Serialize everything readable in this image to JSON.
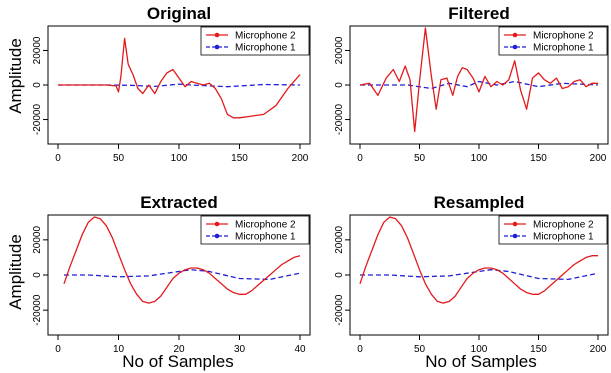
{
  "figure": {
    "ylabel": "Amplitude",
    "xlabel": "No of Samples",
    "legend": [
      "Microphone 2",
      "Microphone 1"
    ],
    "colors": {
      "mic2": "#e31a1c",
      "mic1": "#1f1fd6"
    }
  },
  "chart_data": [
    {
      "type": "line",
      "title": "Original",
      "ylabel": "Amplitude",
      "xlabel": "",
      "xlim": [
        0,
        200
      ],
      "ylim": [
        -33000,
        33000
      ],
      "xticks": [
        "0",
        "50",
        "100",
        "150",
        "200"
      ],
      "yticks": [
        "-20000",
        "0",
        "20000"
      ],
      "legend_position": "top-right",
      "series": [
        {
          "name": "Microphone 2",
          "x": [
            0,
            20,
            40,
            48,
            50,
            52,
            55,
            58,
            62,
            66,
            70,
            75,
            80,
            85,
            90,
            95,
            100,
            105,
            110,
            115,
            120,
            125,
            130,
            135,
            140,
            145,
            150,
            160,
            170,
            180,
            190,
            200
          ],
          "y": [
            0,
            0,
            0,
            -500,
            -4000,
            5000,
            27000,
            12000,
            6000,
            -2000,
            -5000,
            0,
            -5000,
            2000,
            7000,
            9000,
            4000,
            -1000,
            2000,
            1000,
            0,
            1000,
            -2000,
            -8000,
            -17000,
            -19000,
            -19000,
            -18000,
            -17000,
            -12000,
            -2000,
            6000
          ]
        },
        {
          "name": "Microphone 1",
          "x": [
            0,
            40,
            60,
            80,
            95,
            100,
            110,
            140,
            170,
            200
          ],
          "y": [
            0,
            0,
            -200,
            -800,
            200,
            500,
            0,
            -1000,
            300,
            0
          ]
        }
      ]
    },
    {
      "type": "line",
      "title": "Filtered",
      "ylabel": "",
      "xlabel": "",
      "xlim": [
        0,
        200
      ],
      "ylim": [
        -33000,
        33000
      ],
      "xticks": [
        "0",
        "50",
        "100",
        "150",
        "200"
      ],
      "yticks": [
        "-20000",
        "0",
        "20000"
      ],
      "legend_position": "top-right",
      "series": [
        {
          "name": "Microphone 2",
          "x": [
            0,
            8,
            15,
            22,
            28,
            33,
            38,
            42,
            46,
            50,
            55,
            60,
            64,
            68,
            73,
            78,
            82,
            86,
            90,
            95,
            100,
            105,
            110,
            115,
            120,
            125,
            130,
            135,
            140,
            145,
            150,
            155,
            160,
            165,
            170,
            175,
            180,
            185,
            190,
            195,
            200
          ],
          "y": [
            0,
            1000,
            -6000,
            4000,
            9000,
            2000,
            11000,
            3000,
            -27000,
            2000,
            33000,
            5000,
            -14000,
            3000,
            4000,
            -6000,
            5000,
            10000,
            9000,
            4000,
            -4000,
            5000,
            -1000,
            2000,
            0,
            3000,
            14000,
            -3000,
            -14000,
            4000,
            7000,
            3000,
            1000,
            4000,
            -2000,
            -1000,
            2000,
            3000,
            -1000,
            1000,
            1000
          ]
        },
        {
          "name": "Microphone 1",
          "x": [
            0,
            40,
            60,
            75,
            90,
            100,
            115,
            130,
            150,
            170,
            200
          ],
          "y": [
            0,
            0,
            -2000,
            1000,
            -1000,
            2000,
            0,
            2000,
            -1000,
            1000,
            0
          ]
        }
      ]
    },
    {
      "type": "line",
      "title": "Extracted",
      "ylabel": "Amplitude",
      "xlabel": "No of Samples",
      "xlim": [
        0,
        40
      ],
      "ylim": [
        -33000,
        33000
      ],
      "xticks": [
        "0",
        "10",
        "20",
        "30",
        "40"
      ],
      "yticks": [
        "-20000",
        "0",
        "20000"
      ],
      "legend_position": "top-right",
      "series": [
        {
          "name": "Microphone 2",
          "x": [
            1,
            2,
            3,
            4,
            5,
            6,
            7,
            8,
            9,
            10,
            11,
            12,
            13,
            14,
            15,
            16,
            17,
            18,
            19,
            20,
            21,
            22,
            23,
            24,
            25,
            26,
            27,
            28,
            29,
            30,
            31,
            32,
            33,
            34,
            35,
            36,
            37,
            38,
            39,
            40
          ],
          "y": [
            -5000,
            5000,
            14000,
            23000,
            30000,
            33000,
            32000,
            28000,
            21000,
            12000,
            3000,
            -5000,
            -11000,
            -15000,
            -16000,
            -15000,
            -12000,
            -7000,
            -2000,
            1000,
            3000,
            4000,
            4000,
            3000,
            1000,
            -2000,
            -5000,
            -8000,
            -10000,
            -11000,
            -11000,
            -9000,
            -6000,
            -3000,
            0,
            3000,
            6000,
            8000,
            10000,
            11000
          ]
        },
        {
          "name": "Microphone 1",
          "x": [
            1,
            5,
            10,
            15,
            18,
            22,
            25,
            30,
            35,
            40
          ],
          "y": [
            0,
            0,
            -1000,
            -500,
            1000,
            3000,
            2000,
            -2000,
            -2500,
            1000
          ]
        }
      ]
    },
    {
      "type": "line",
      "title": "Resampled",
      "ylabel": "",
      "xlabel": "No of Samples",
      "xlim": [
        0,
        200
      ],
      "ylim": [
        -33000,
        33000
      ],
      "xticks": [
        "0",
        "50",
        "100",
        "150",
        "200"
      ],
      "yticks": [
        "-20000",
        "0",
        "20000"
      ],
      "legend_position": "top-right",
      "series": [
        {
          "name": "Microphone 2",
          "x": [
            0,
            5,
            10,
            15,
            20,
            25,
            30,
            35,
            40,
            45,
            50,
            55,
            60,
            65,
            70,
            75,
            80,
            85,
            90,
            95,
            100,
            105,
            110,
            115,
            120,
            125,
            130,
            135,
            140,
            145,
            150,
            155,
            160,
            165,
            170,
            175,
            180,
            185,
            190,
            195,
            200
          ],
          "y": [
            -5000,
            5000,
            14000,
            23000,
            30000,
            33000,
            32000,
            28000,
            21000,
            12000,
            3000,
            -5000,
            -11000,
            -15000,
            -16000,
            -15000,
            -12000,
            -7000,
            -2000,
            1000,
            3000,
            4000,
            4000,
            3000,
            1000,
            -2000,
            -5000,
            -8000,
            -10000,
            -11000,
            -11000,
            -9000,
            -6000,
            -3000,
            0,
            3000,
            6000,
            8000,
            10000,
            11000,
            11000
          ]
        },
        {
          "name": "Microphone 1",
          "x": [
            0,
            25,
            50,
            75,
            90,
            110,
            125,
            150,
            175,
            200
          ],
          "y": [
            0,
            0,
            -1000,
            -500,
            1000,
            3000,
            2000,
            -2000,
            -2500,
            1000
          ]
        }
      ]
    }
  ]
}
